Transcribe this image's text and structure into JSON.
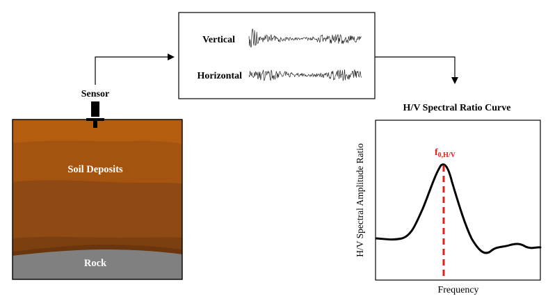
{
  "sensor": {
    "label": "Sensor"
  },
  "soil": {
    "label": "Soil Deposits",
    "rock_label": "Rock"
  },
  "records": {
    "vertical_label": "Vertical",
    "horizontal_label": "Horizontal"
  },
  "curve": {
    "title": "H/V Spectral Ratio Curve",
    "ylabel": "H/V Spectral Amplitude Ratio",
    "xlabel": "Frequency",
    "peak_label_main": "f",
    "peak_label_sub": "0,H/V"
  },
  "colors": {
    "peak_marker": "#e0201a",
    "soil_layers": [
      "#b35d0f",
      "#a55410",
      "#8e4a12",
      "#7c3f10",
      "#6b360d"
    ],
    "rock": "#808080"
  }
}
